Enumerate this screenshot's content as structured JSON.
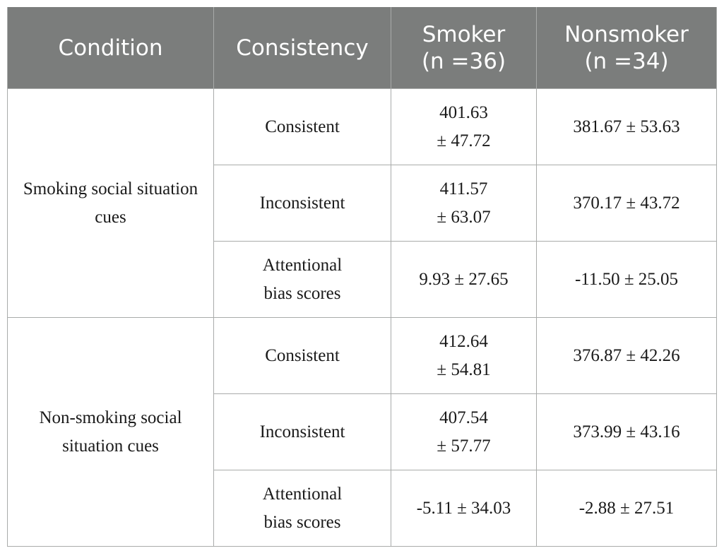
{
  "header": {
    "condition": "Condition",
    "consistency": "Consistency",
    "smoker_line1": "Smoker",
    "smoker_line2": "(n =36)",
    "nonsmoker_line1": "Nonsmoker",
    "nonsmoker_line2": "(n =34)"
  },
  "groups": [
    {
      "condition": "Smoking social situation cues",
      "rows": [
        {
          "consistency": "Consistent",
          "smoker_line1": "401.63",
          "smoker_line2": "± 47.72",
          "nonsmoker": "381.67 ± 53.63"
        },
        {
          "consistency": "Inconsistent",
          "smoker_line1": "411.57",
          "smoker_line2": "± 63.07",
          "nonsmoker": "370.17 ± 43.72"
        },
        {
          "consistency_line1": "Attentional",
          "consistency_line2": "bias scores",
          "smoker": "9.93 ± 27.65",
          "nonsmoker": "-11.50 ± 25.05"
        }
      ]
    },
    {
      "condition": "Non-smoking social situation cues",
      "rows": [
        {
          "consistency": "Consistent",
          "smoker_line1": "412.64",
          "smoker_line2": "± 54.81",
          "nonsmoker": "376.87 ± 42.26"
        },
        {
          "consistency": "Inconsistent",
          "smoker_line1": "407.54",
          "smoker_line2": "± 57.77",
          "nonsmoker": "373.99 ± 43.16"
        },
        {
          "consistency_line1": "Attentional",
          "consistency_line2": "bias scores",
          "smoker": "-5.11 ± 34.03",
          "nonsmoker": "-2.88 ± 27.51"
        }
      ]
    }
  ]
}
